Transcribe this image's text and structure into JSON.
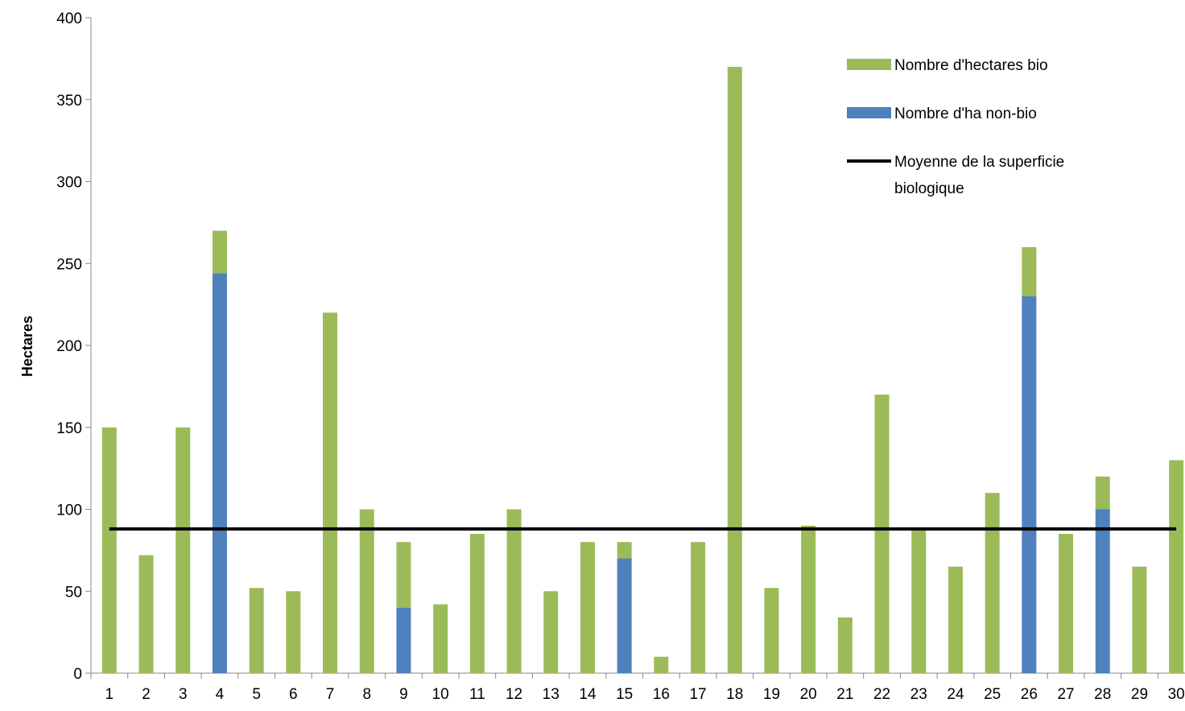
{
  "colors": {
    "bio": "#9BBB59",
    "non_bio": "#4F81BD",
    "average_line": "#000000",
    "axis": "#888888"
  },
  "chart_data": {
    "type": "bar",
    "stacked": true,
    "categories": [
      "1",
      "2",
      "3",
      "4",
      "5",
      "6",
      "7",
      "8",
      "9",
      "10",
      "11",
      "12",
      "13",
      "14",
      "15",
      "16",
      "17",
      "18",
      "19",
      "20",
      "21",
      "22",
      "23",
      "24",
      "25",
      "26",
      "27",
      "28",
      "29",
      "30"
    ],
    "series": [
      {
        "name": "Nombre d'ha non-bio",
        "color": "#4F81BD",
        "values": [
          0,
          0,
          0,
          244,
          0,
          0,
          0,
          0,
          40,
          0,
          0,
          0,
          0,
          0,
          70,
          0,
          0,
          0,
          0,
          0,
          0,
          0,
          0,
          0,
          0,
          230,
          0,
          100,
          0,
          0
        ]
      },
      {
        "name": "Nombre d'hectares bio",
        "color": "#9BBB59",
        "values": [
          150,
          72,
          150,
          26,
          52,
          50,
          220,
          100,
          40,
          42,
          85,
          100,
          50,
          80,
          10,
          10,
          80,
          370,
          52,
          90,
          34,
          170,
          88,
          65,
          110,
          30,
          85,
          20,
          65,
          130
        ]
      }
    ],
    "average_line": {
      "name": "Moyenne de la superficie biologique",
      "value": 88
    },
    "title": "",
    "xlabel": "",
    "ylabel": "Hectares",
    "ylim": [
      0,
      400
    ],
    "yticks": [
      0,
      50,
      100,
      150,
      200,
      250,
      300,
      350,
      400
    ],
    "grid": false,
    "legend": {
      "position": "top-right",
      "entries": [
        {
          "label": "Nombre d'hectares bio",
          "type": "bar",
          "color": "#9BBB59"
        },
        {
          "label": "Nombre d'ha non-bio",
          "type": "bar",
          "color": "#4F81BD"
        },
        {
          "label_lines": [
            "Moyenne de la superficie",
            "biologique"
          ],
          "type": "line",
          "color": "#000000"
        }
      ]
    }
  }
}
